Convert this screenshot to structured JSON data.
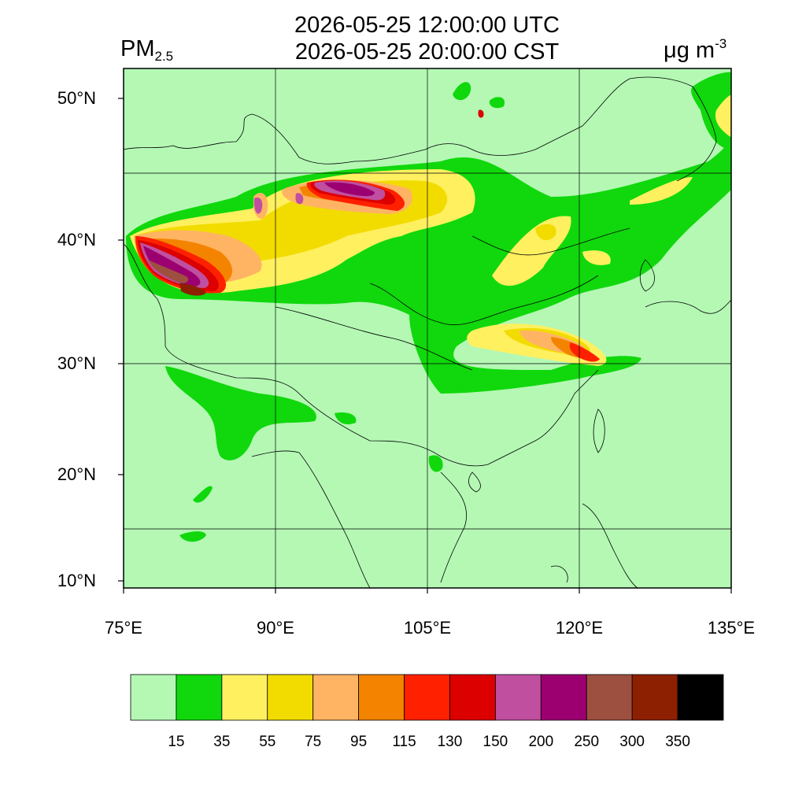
{
  "header": {
    "title_utc": "2026-05-25 12:00:00 UTC",
    "title_cst": "2026-05-25 20:00:00 CST",
    "variable_base": "PM",
    "variable_sub": "2.5",
    "unit_base": "μg m",
    "unit_sup": "-3"
  },
  "map": {
    "projection": "lat-lon",
    "lon_range": [
      75,
      135
    ],
    "lat_range": [
      9,
      52
    ],
    "grid": true,
    "lon_ticks": [
      {
        "value": 75,
        "label": "75°E"
      },
      {
        "value": 90,
        "label": "90°E"
      },
      {
        "value": 105,
        "label": "105°E"
      },
      {
        "value": 120,
        "label": "120°E"
      },
      {
        "value": 135,
        "label": "135°E"
      }
    ],
    "lat_ticks": [
      {
        "value": 10,
        "label": "10°N"
      },
      {
        "value": 20,
        "label": "20°N"
      },
      {
        "value": 30,
        "label": "30°N"
      },
      {
        "value": 40,
        "label": "40°N"
      },
      {
        "value": 50,
        "label": "50°N"
      }
    ]
  },
  "colorbar": {
    "levels": [
      "15",
      "35",
      "55",
      "75",
      "95",
      "115",
      "130",
      "150",
      "200",
      "250",
      "300",
      "350"
    ],
    "colors": [
      "#b4f8b4",
      "#10d80c",
      "#fff060",
      "#f2dc00",
      "#ffb464",
      "#f48400",
      "#ff2000",
      "#dc0000",
      "#c04fa0",
      "#9c0070",
      "#9e5040",
      "#8c2000",
      "#000000"
    ]
  }
}
